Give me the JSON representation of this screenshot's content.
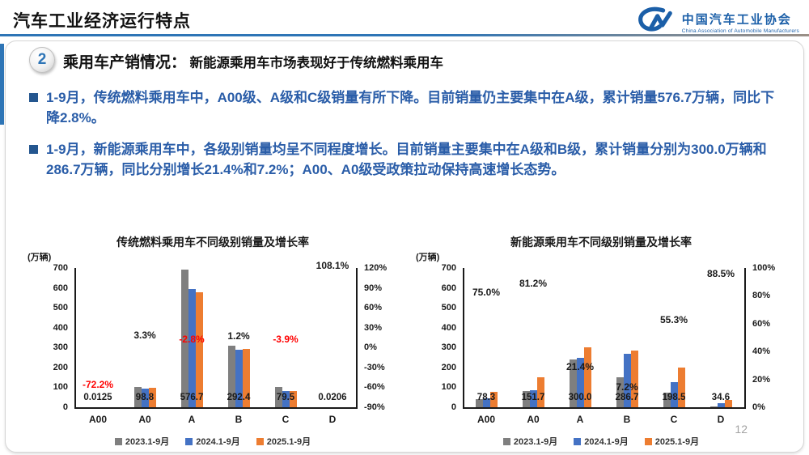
{
  "page": {
    "title": "汽车工业经济运行特点",
    "page_number": "12"
  },
  "logo": {
    "mark": "CM",
    "name_cn": "中国汽车工业协会",
    "name_en": "China Association of Automobile Manufacturers"
  },
  "section": {
    "number": "2",
    "title_strong": "乘用车产销情况：",
    "title_rest": "新能源乘用车市场表现好于传统燃料乘用车"
  },
  "bullets": [
    {
      "text": "1-9月，传统燃料乘用车中，A00级、A级和C级销量有所下降。目前销量仍主要集中在A级，累计销量576.7万辆，同比下降2.8%。"
    },
    {
      "text": "1-9月，新能源乘用车中，各级别销量均呈不同程度增长。目前销量主要集中在A级和B级，累计销量分别为300.0万辆和286.7万辆，同比分别增长21.4%和7.2%；A00、A0级受政策拉动保持高速增长态势。"
    }
  ],
  "watermark": {
    "text": "中国汽车工业协会"
  },
  "colors": {
    "accent_blue": "#2e75b6",
    "text_blue": "#2a5da8",
    "series_2023": "#7f7f7f",
    "series_2024": "#4472c4",
    "series_2025": "#ed7d31",
    "negative_red": "#ff0000"
  },
  "chart_data": [
    {
      "type": "bar",
      "title": "传统燃料乘用车不同级别销量及增长率",
      "unit_label": "(万辆)",
      "categories": [
        "A00",
        "A0",
        "A",
        "B",
        "C",
        "D"
      ],
      "series": [
        {
          "name": "2023.1-9月",
          "color": "#7f7f7f",
          "values": [
            0.05,
            101,
            690,
            308,
            103,
            0.01
          ]
        },
        {
          "name": "2024.1-9月",
          "color": "#4472c4",
          "values": [
            0.045,
            95.6,
            593.3,
            289.0,
            82.7,
            0.0099
          ]
        },
        {
          "name": "2025.1-9月",
          "color": "#ed7d31",
          "values": [
            0.0125,
            98.8,
            576.7,
            292.4,
            79.5,
            0.0206
          ]
        }
      ],
      "value_labels": [
        "0.0125",
        "98.8",
        "576.7",
        "292.4",
        "79.5",
        "0.0206"
      ],
      "growth_labels": [
        {
          "text": "-72.2%",
          "value": -72.2
        },
        {
          "text": "3.3%",
          "value": 3.3
        },
        {
          "text": "-2.8%",
          "value": -2.8
        },
        {
          "text": "1.2%",
          "value": 1.2
        },
        {
          "text": "-3.9%",
          "value": -3.9
        },
        {
          "text": "108.1%",
          "value": 108.1
        }
      ],
      "left_axis": {
        "min": 0,
        "max": 700,
        "step": 100
      },
      "right_axis": {
        "min": -90,
        "max": 120,
        "step": 30,
        "suffix": "%"
      },
      "legend_position": "bottom",
      "grid": false
    },
    {
      "type": "bar",
      "title": "新能源乘用车不同级别销量及增长率",
      "unit_label": "(万辆)",
      "categories": [
        "A00",
        "A0",
        "A",
        "B",
        "C",
        "D"
      ],
      "series": [
        {
          "name": "2023.1-9月",
          "color": "#7f7f7f",
          "values": [
            42,
            83,
            240,
            150,
            74,
            5
          ]
        },
        {
          "name": "2024.1-9月",
          "color": "#4472c4",
          "values": [
            44.7,
            84,
            247.1,
            267.4,
            127.8,
            18.4
          ]
        },
        {
          "name": "2025.1-9月",
          "color": "#ed7d31",
          "values": [
            78.3,
            151.7,
            300.0,
            286.7,
            198.5,
            34.6
          ]
        }
      ],
      "value_labels": [
        "78.3",
        "151.7",
        "300.0",
        "286.7",
        "198.5",
        "34.6"
      ],
      "growth_labels": [
        {
          "text": "75.0%",
          "value": 75.0
        },
        {
          "text": "81.2%",
          "value": 81.2
        },
        {
          "text": "21.4%",
          "value": 21.4
        },
        {
          "text": "7.2%",
          "value": 7.2
        },
        {
          "text": "55.3%",
          "value": 55.3
        },
        {
          "text": "88.5%",
          "value": 88.5
        }
      ],
      "left_axis": {
        "min": 0,
        "max": 700,
        "step": 100
      },
      "right_axis": {
        "min": 0,
        "max": 100,
        "step": 20,
        "suffix": "%"
      },
      "legend_position": "bottom",
      "grid": false
    }
  ]
}
